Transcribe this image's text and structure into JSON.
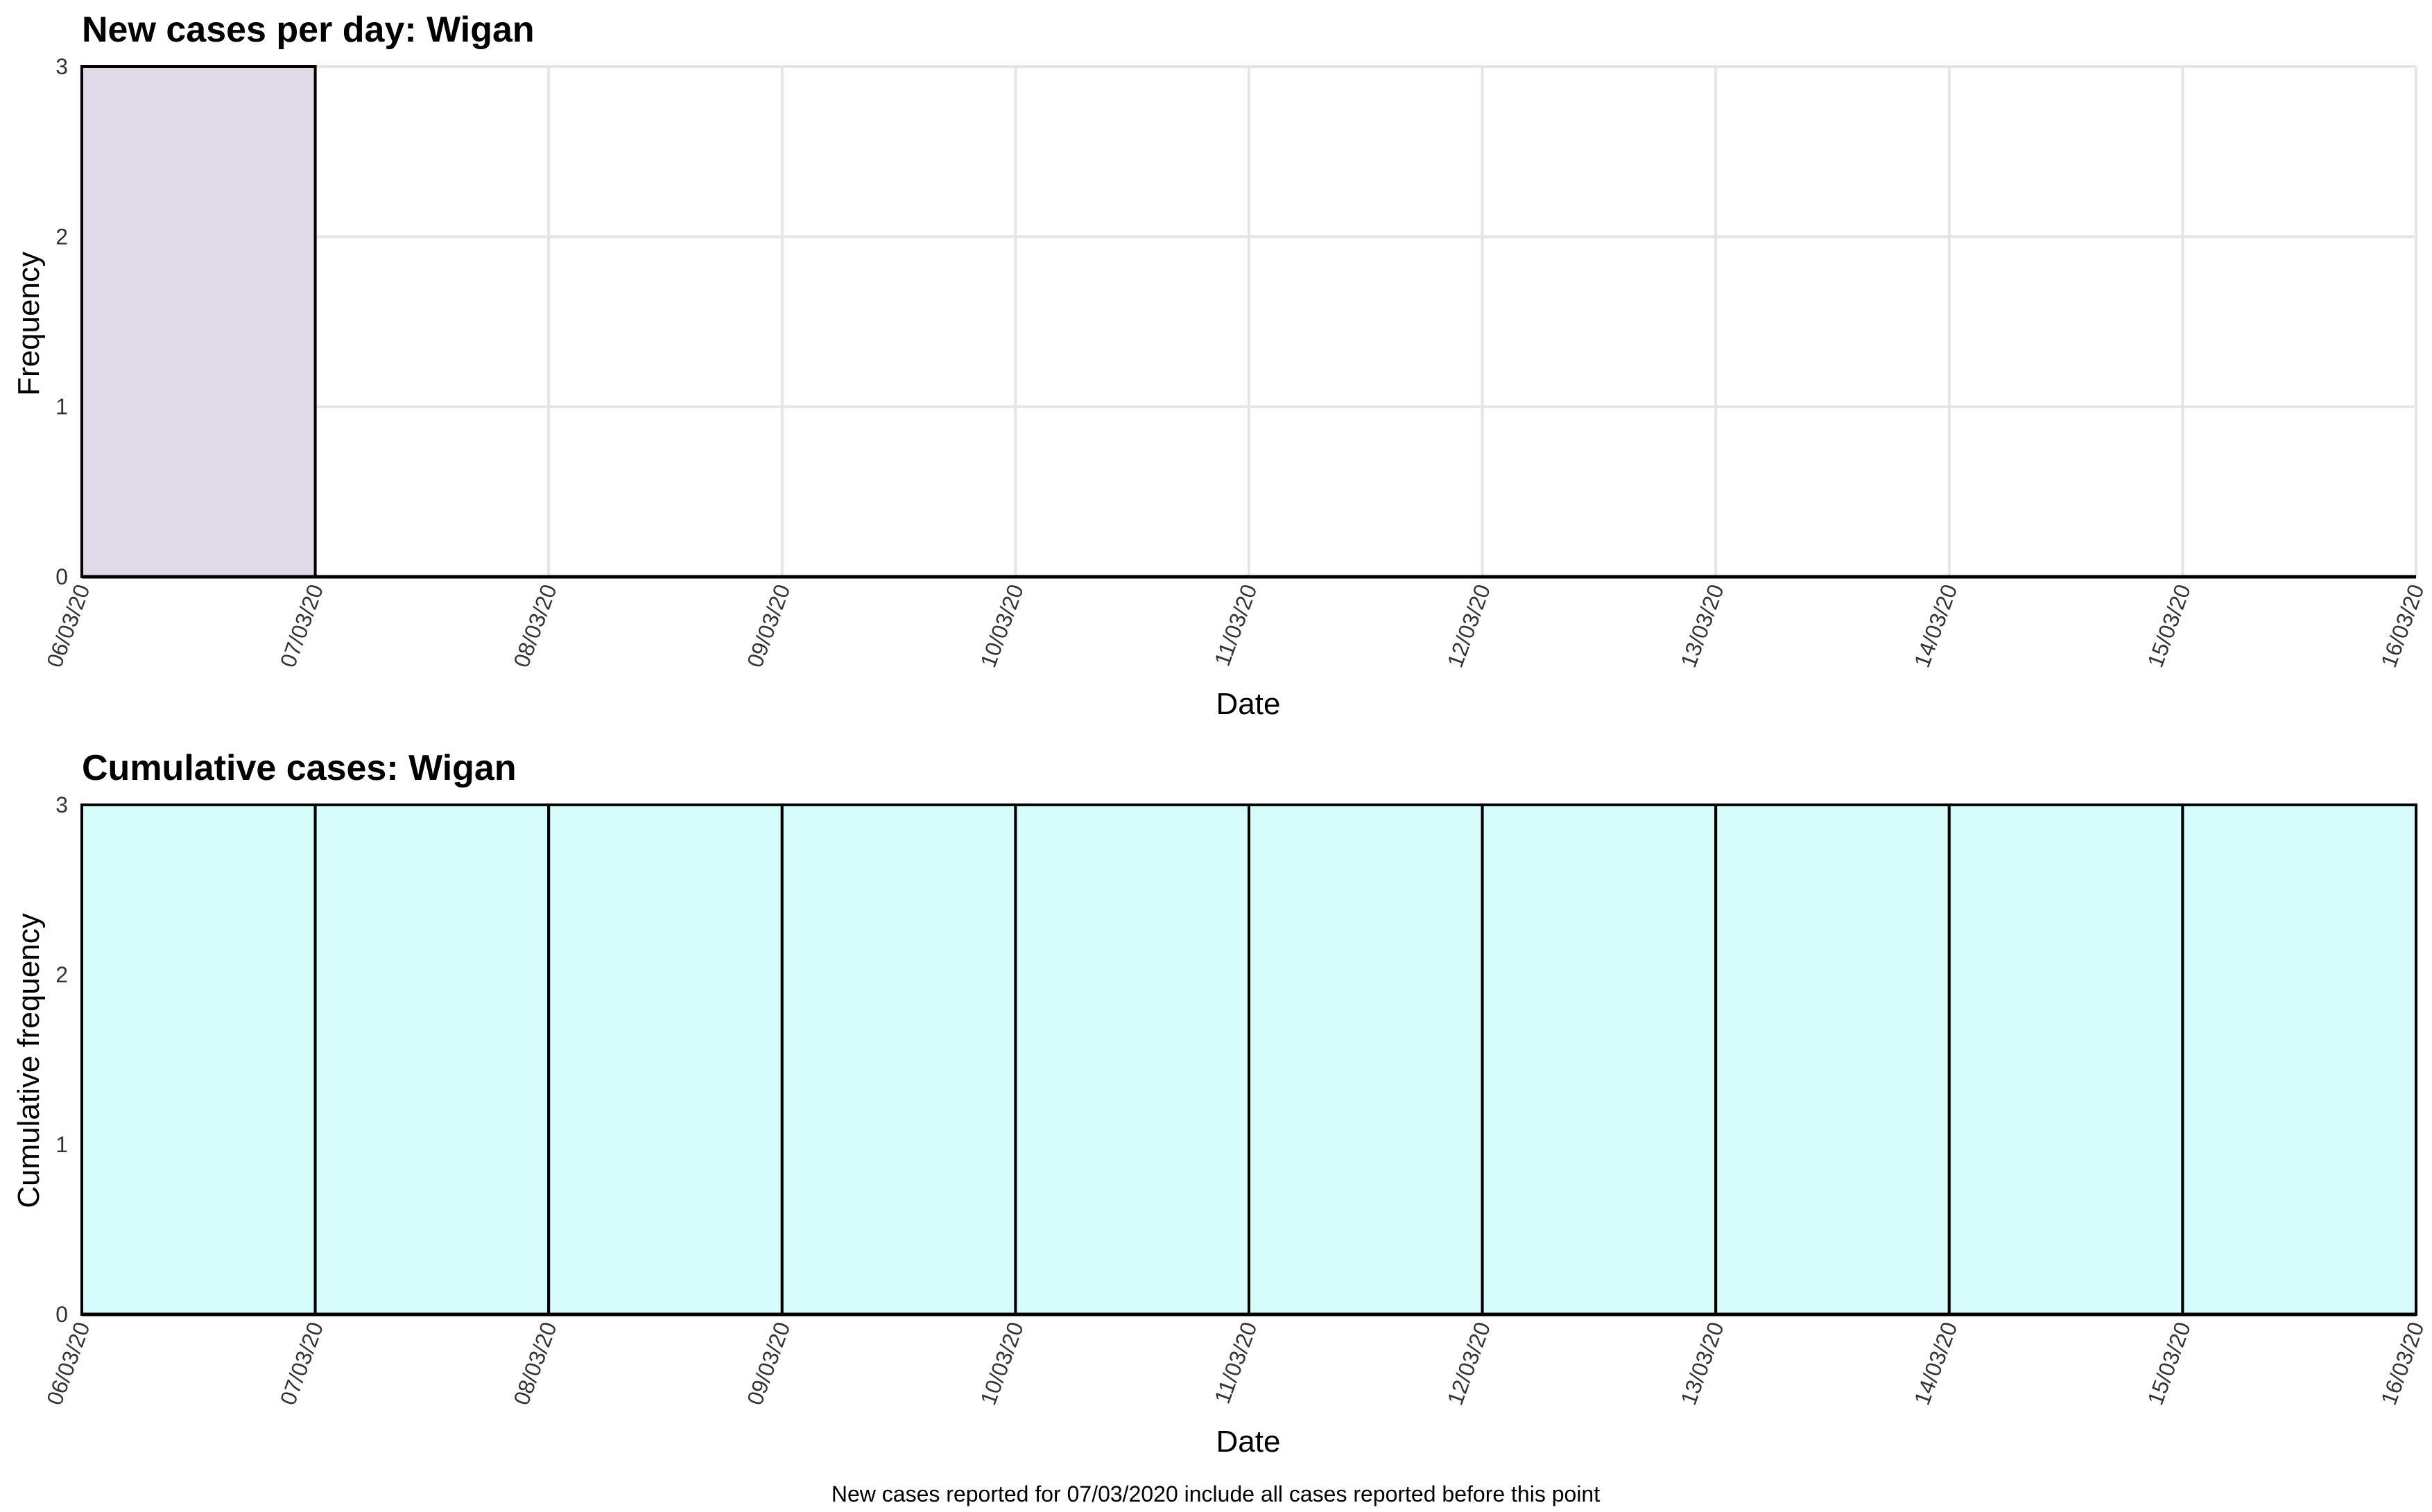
{
  "chart_data": [
    {
      "type": "bar",
      "title": "New cases per day: Wigan",
      "xlabel": "Date",
      "ylabel": "Frequency",
      "categories": [
        "06/03/20",
        "07/03/20",
        "08/03/20",
        "09/03/20",
        "10/03/20",
        "11/03/20",
        "12/03/20",
        "13/03/20",
        "14/03/20",
        "15/03/20"
      ],
      "x_ticks": [
        "06/03/20",
        "07/03/20",
        "08/03/20",
        "09/03/20",
        "10/03/20",
        "11/03/20",
        "12/03/20",
        "13/03/20",
        "14/03/20",
        "15/03/20",
        "16/03/20"
      ],
      "values": [
        3,
        0,
        0,
        0,
        0,
        0,
        0,
        0,
        0,
        0
      ],
      "ylim": [
        0,
        3
      ],
      "y_ticks": [
        0,
        1,
        2,
        3
      ],
      "grid": true,
      "bar_color": "#e0dae8"
    },
    {
      "type": "bar",
      "title": "Cumulative cases: Wigan",
      "xlabel": "Date",
      "ylabel": "Cumulative frequency",
      "categories": [
        "06/03/20",
        "07/03/20",
        "08/03/20",
        "09/03/20",
        "10/03/20",
        "11/03/20",
        "12/03/20",
        "13/03/20",
        "14/03/20",
        "15/03/20"
      ],
      "x_ticks": [
        "06/03/20",
        "07/03/20",
        "08/03/20",
        "09/03/20",
        "10/03/20",
        "11/03/20",
        "12/03/20",
        "13/03/20",
        "14/03/20",
        "15/03/20",
        "16/03/20"
      ],
      "values": [
        3,
        3,
        3,
        3,
        3,
        3,
        3,
        3,
        3,
        3
      ],
      "ylim": [
        0,
        3
      ],
      "y_ticks": [
        0,
        1,
        2,
        3
      ],
      "grid": true,
      "bar_color": "#d6fcfc"
    }
  ],
  "caption": "New cases reported for 07/03/2020 include all cases reported before this point"
}
